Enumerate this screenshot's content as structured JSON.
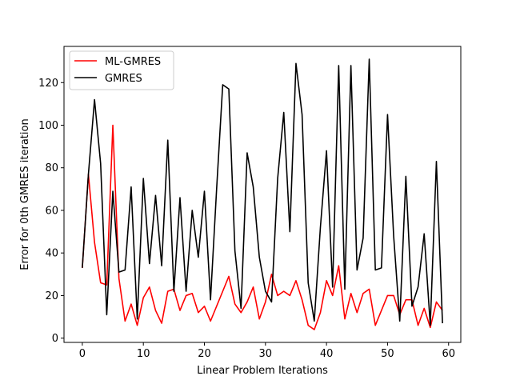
{
  "chart_data": {
    "type": "line",
    "title": "",
    "xlabel": "Linear Problem Iterations",
    "ylabel": "Error for 0th GMRES iteration",
    "xlim": [
      -3,
      62
    ],
    "ylim": [
      -2,
      137
    ],
    "xticks": [
      0,
      10,
      20,
      30,
      40,
      50,
      60
    ],
    "yticks": [
      0,
      20,
      40,
      60,
      80,
      100,
      120
    ],
    "grid": false,
    "legend_position": "upper left",
    "x": [
      0,
      1,
      2,
      3,
      4,
      5,
      6,
      7,
      8,
      9,
      10,
      11,
      12,
      13,
      14,
      15,
      16,
      17,
      18,
      19,
      20,
      21,
      22,
      23,
      24,
      25,
      26,
      27,
      28,
      29,
      30,
      31,
      32,
      33,
      34,
      35,
      36,
      37,
      38,
      39,
      40,
      41,
      42,
      43,
      44,
      45,
      46,
      47,
      48,
      49,
      50,
      51,
      52,
      53,
      54,
      55,
      56,
      57,
      58,
      59
    ],
    "series": [
      {
        "name": "ML-GMRES",
        "color": "#ff0000",
        "values": [
          33,
          77,
          45,
          26,
          25,
          100,
          28,
          8,
          16,
          6,
          19,
          24,
          13,
          7,
          22,
          23,
          13,
          20,
          21,
          12,
          15,
          8,
          15,
          22,
          29,
          16,
          12,
          17,
          24,
          9,
          17,
          30,
          20,
          22,
          20,
          27,
          18,
          6,
          4,
          12,
          27,
          20,
          34,
          9,
          21,
          12,
          21,
          23,
          6,
          13,
          20,
          20,
          11,
          18,
          18,
          6,
          14,
          5,
          17,
          13
        ]
      },
      {
        "name": "GMRES",
        "color": "#000000",
        "values": [
          33,
          77,
          112,
          82,
          11,
          69,
          31,
          32,
          71,
          9,
          75,
          35,
          67,
          34,
          93,
          22,
          66,
          22,
          60,
          38,
          69,
          18,
          70,
          119,
          117,
          41,
          14,
          87,
          71,
          38,
          22,
          17,
          75,
          106,
          50,
          129,
          105,
          26,
          8,
          52,
          88,
          24,
          128,
          23,
          128,
          32,
          47,
          131,
          32,
          33,
          105,
          48,
          8,
          76,
          15,
          24,
          49,
          6,
          83,
          7
        ]
      }
    ]
  }
}
